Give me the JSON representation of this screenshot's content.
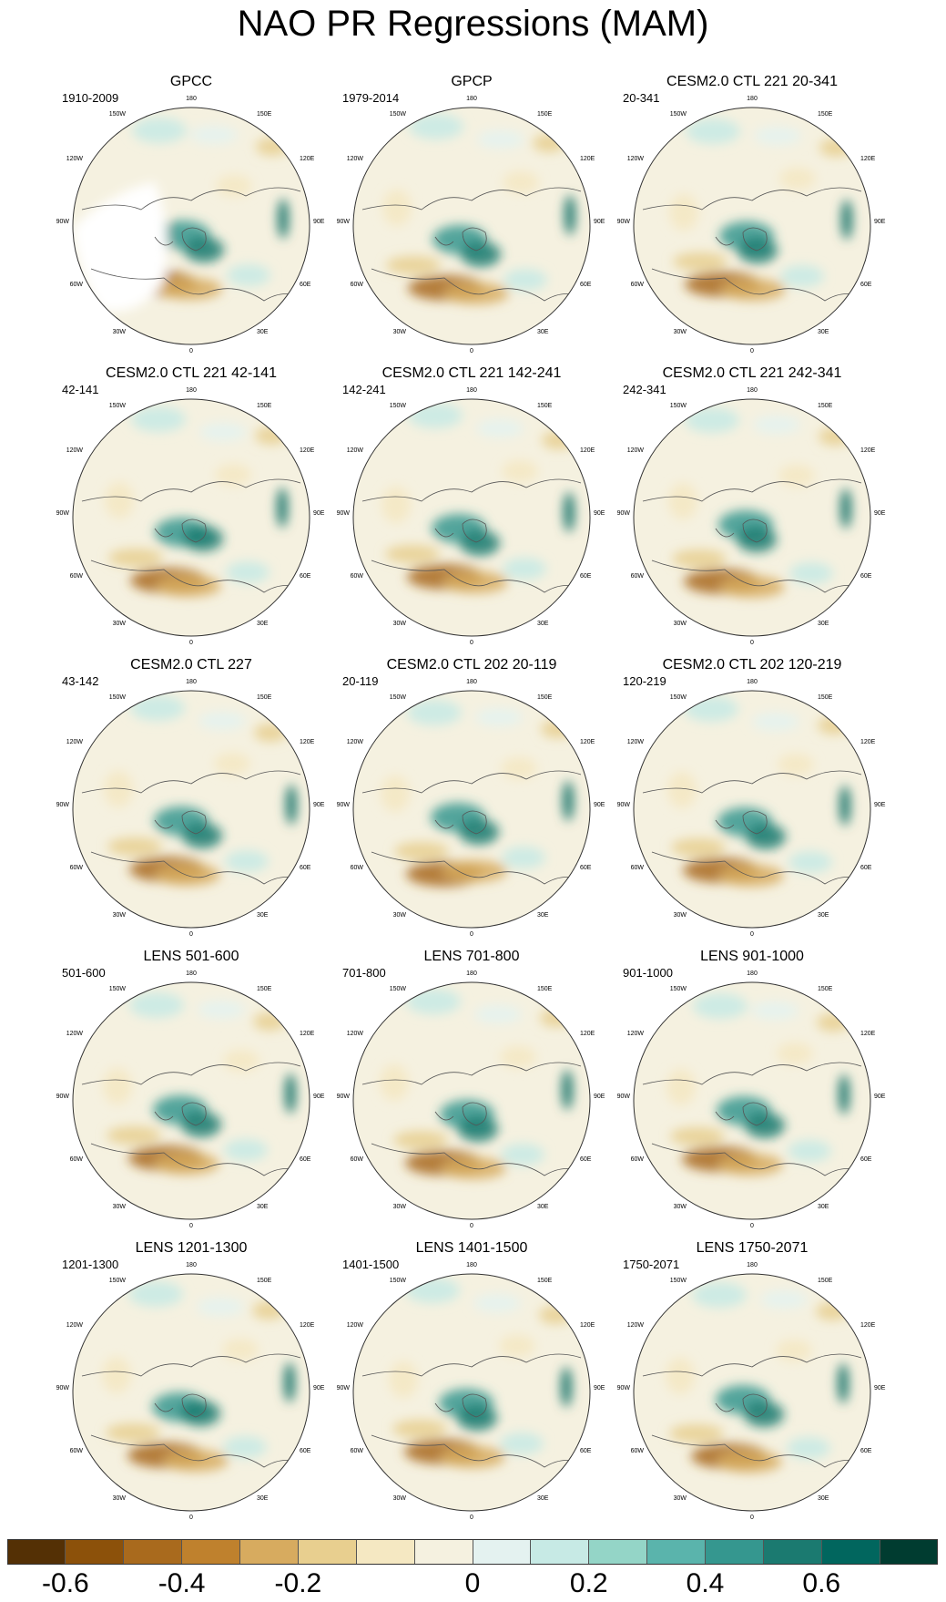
{
  "title": "NAO PR Regressions (MAM)",
  "panels": [
    {
      "title": "GPCC",
      "period": "1910-2009"
    },
    {
      "title": "GPCP",
      "period": "1979-2014"
    },
    {
      "title": "CESM2.0 CTL 221 20-341",
      "period": "20-341"
    },
    {
      "title": "CESM2.0 CTL 221 42-141",
      "period": "42-141"
    },
    {
      "title": "CESM2.0 CTL 221 142-241",
      "period": "142-241"
    },
    {
      "title": "CESM2.0 CTL 221 242-341",
      "period": "242-341"
    },
    {
      "title": "CESM2.0 CTL 227",
      "period": "43-142"
    },
    {
      "title": "CESM2.0 CTL 202 20-119",
      "period": "20-119"
    },
    {
      "title": "CESM2.0 CTL 202 120-219",
      "period": "120-219"
    },
    {
      "title": "LENS 501-600",
      "period": "501-600"
    },
    {
      "title": "LENS 701-800",
      "period": "701-800"
    },
    {
      "title": "LENS 901-1000",
      "period": "901-1000"
    },
    {
      "title": "LENS 1201-1300",
      "period": "1201-1300"
    },
    {
      "title": "LENS 1401-1500",
      "period": "1401-1500"
    },
    {
      "title": "LENS 1750-2071",
      "period": "1750-2071"
    }
  ],
  "map_labels": {
    "top": "180",
    "bottom": "0",
    "left": "90W",
    "right": "90E",
    "upper_left": "150W",
    "upper_right": "150E",
    "mid_upper_left": "120W",
    "mid_upper_right": "120E",
    "mid_lower_left": "60W",
    "mid_lower_right": "60E",
    "lower_left": "30W",
    "lower_right": "30E"
  },
  "colorbar": {
    "colors": [
      "#543005",
      "#8c510a",
      "#a96a1d",
      "#bf812d",
      "#d7ab5f",
      "#e8cf8f",
      "#f5e8c2",
      "#f5f1e0",
      "#e4f2f0",
      "#c7eae5",
      "#94d5c7",
      "#5ab4ac",
      "#35978f",
      "#1b7a70",
      "#01665e",
      "#003c30"
    ],
    "tick_labels": [
      "-0.6",
      "-0.4",
      "-0.2",
      "0",
      "0.2",
      "0.4",
      "0.6"
    ]
  },
  "land_color": "#ffffff",
  "neutral_color": "#f5f1e0"
}
